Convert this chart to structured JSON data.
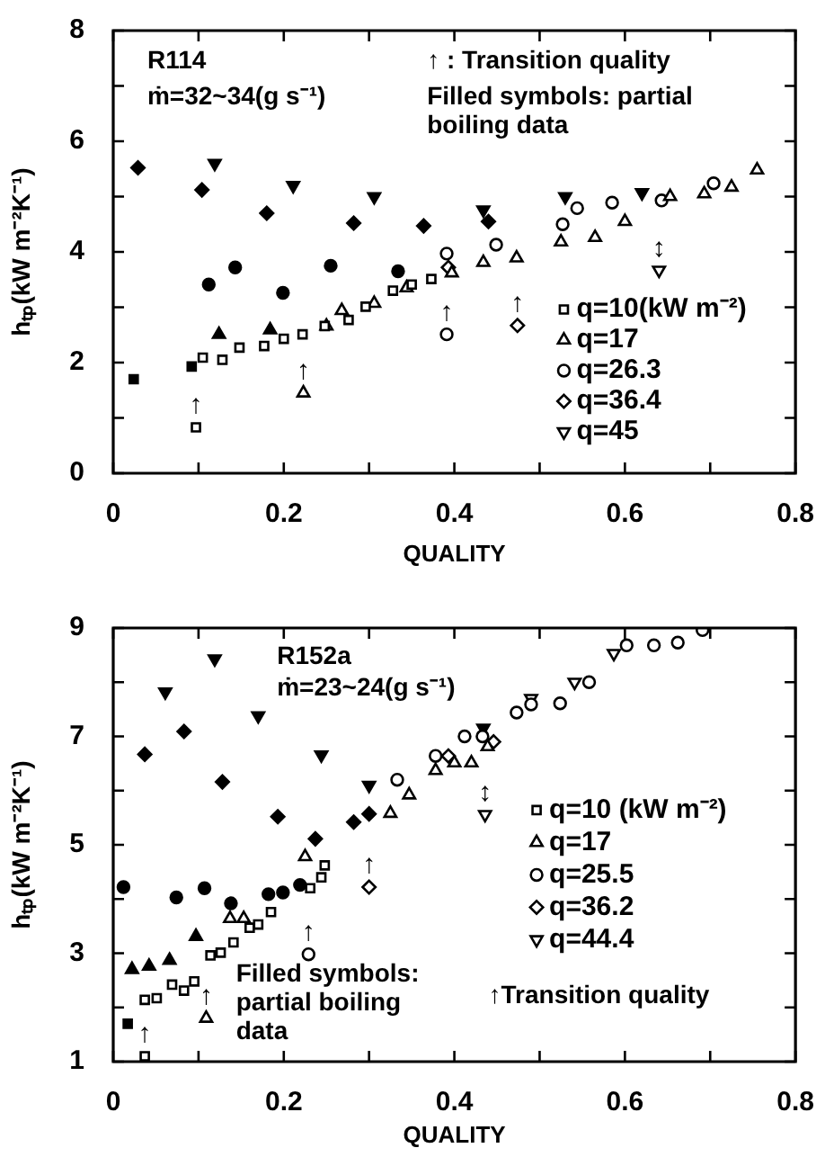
{
  "chart_data": [
    {
      "type": "scatter",
      "xlabel": "QUALITY",
      "ylabel": "hₜₚ(kW m⁻²K⁻¹)",
      "xlim": [
        0,
        0.8
      ],
      "ylim": [
        0,
        8
      ],
      "xticks": [
        0,
        {
          "value": 0.1,
          "label": null
        },
        0.2,
        {
          "value": 0.3,
          "label": null
        },
        0.4,
        {
          "value": 0.5,
          "label": null
        },
        0.6,
        {
          "value": 0.7,
          "label": null
        },
        0.8
      ],
      "yticks": [
        0,
        {
          "value": 1,
          "label": null
        },
        2,
        {
          "value": 3,
          "label": null
        },
        4,
        {
          "value": 5,
          "label": null
        },
        6,
        {
          "value": 7,
          "label": null
        },
        8
      ],
      "grid": false,
      "legend": "bottom right",
      "annotations": [
        "R114",
        "ṁ=32~34(g s⁻¹)",
        "↑ : Transition quality",
        "Filled symbols: partial boiling data",
        {
          "text": "↑",
          "x": 0.097,
          "y": 0.83
        },
        {
          "text": "↑",
          "x": 0.223,
          "y": 1.45
        },
        {
          "text": "↑",
          "x": 0.391,
          "y": 2.51
        },
        {
          "text": "↑",
          "x": 0.474,
          "y": 2.67
        },
        {
          "text": "↕",
          "x": 0.64,
          "y": 3.67
        }
      ],
      "series": [
        {
          "name": "q=10(kW m⁻²)",
          "color": "#000000",
          "marker": "square-open",
          "x": [
            0.097,
            0.105,
            0.128,
            0.148,
            0.177,
            0.2,
            0.222,
            0.248,
            0.276,
            0.296,
            0.328,
            0.35,
            0.373
          ],
          "values": [
            0.83,
            2.09,
            2.05,
            2.27,
            2.3,
            2.43,
            2.51,
            2.66,
            2.77,
            3.01,
            3.3,
            3.41,
            3.51
          ]
        },
        {
          "name": "q=17",
          "color": "#000000",
          "marker": "triangle-open",
          "x": [
            0.223,
            0.25,
            0.268,
            0.306,
            0.344,
            0.397,
            0.434,
            0.473,
            0.525,
            0.565,
            0.6,
            0.653,
            0.693,
            0.725,
            0.755
          ],
          "values": [
            1.45,
            2.66,
            2.94,
            3.07,
            3.35,
            3.62,
            3.81,
            3.89,
            4.18,
            4.26,
            4.55,
            5.0,
            5.05,
            5.17,
            5.48
          ]
        },
        {
          "name": "q=26.3",
          "color": "#000000",
          "marker": "circle-open",
          "x": [
            0.391,
            0.391,
            0.449,
            0.527,
            0.544,
            0.585,
            0.643,
            0.704
          ],
          "values": [
            2.51,
            3.97,
            4.13,
            4.5,
            4.79,
            4.89,
            4.93,
            5.24
          ]
        },
        {
          "name": "q=36.4",
          "color": "#000000",
          "marker": "diamond-open",
          "x": [
            0.474,
            0.393
          ],
          "values": [
            2.67,
            3.72
          ]
        },
        {
          "name": "q=45",
          "color": "#000000",
          "marker": "triangle-down-open",
          "x": [
            0.64
          ],
          "values": [
            3.67
          ]
        },
        {
          "color": "#000000",
          "marker": "square",
          "x": [
            0.024,
            0.092
          ],
          "values": [
            1.7,
            1.93
          ]
        },
        {
          "color": "#000000",
          "marker": "triangle",
          "x": [
            0.124,
            0.184
          ],
          "values": [
            2.51,
            2.59
          ]
        },
        {
          "color": "#000000",
          "marker": "circle",
          "x": [
            0.112,
            0.143,
            0.199,
            0.255,
            0.334
          ],
          "values": [
            3.41,
            3.72,
            3.26,
            3.75,
            3.65
          ]
        },
        {
          "color": "#000000",
          "marker": "diamond",
          "x": [
            0.029,
            0.104,
            0.18,
            0.282,
            0.364,
            0.44
          ],
          "values": [
            5.52,
            5.12,
            4.7,
            4.52,
            4.47,
            4.55
          ]
        },
        {
          "color": "#000000",
          "marker": "triangle-down",
          "x": [
            0.119,
            0.211,
            0.306,
            0.434,
            0.53,
            0.62
          ],
          "values": [
            5.6,
            5.2,
            5.0,
            4.76,
            5.0,
            5.07
          ]
        }
      ]
    },
    {
      "type": "scatter",
      "xlabel": "QUALITY",
      "ylabel": "hₜₚ(kW m⁻²K⁻¹)",
      "xlim": [
        0,
        0.8
      ],
      "ylim": [
        1,
        9
      ],
      "xticks": [
        0,
        {
          "value": 0.1,
          "label": null
        },
        0.2,
        {
          "value": 0.3,
          "label": null
        },
        0.4,
        {
          "value": 0.5,
          "label": null
        },
        0.6,
        {
          "value": 0.7,
          "label": null
        },
        0.8
      ],
      "yticks": [
        1,
        {
          "value": 2,
          "label": null
        },
        3,
        {
          "value": 4,
          "label": null
        },
        5,
        {
          "value": 6,
          "label": null
        },
        7,
        {
          "value": 8,
          "label": null
        },
        9
      ],
      "grid": false,
      "legend": "right",
      "annotations": [
        "R152a",
        "ṁ=23~24(g s⁻¹)",
        "Filled symbols: partial boiling data",
        "↑Transition quality",
        {
          "text": "↑",
          "x": 0.037,
          "y": 1.1
        },
        {
          "text": "↑",
          "x": 0.109,
          "y": 1.8
        },
        {
          "text": "↑",
          "x": 0.229,
          "y": 2.98
        },
        {
          "text": "↑",
          "x": 0.3,
          "y": 4.22
        },
        {
          "text": "↕",
          "x": 0.436,
          "y": 5.56
        }
      ],
      "series": [
        {
          "name": "q=10 (kW m⁻²)",
          "color": "#000000",
          "marker": "square-open",
          "x": [
            0.037,
            0.037,
            0.051,
            0.069,
            0.083,
            0.095,
            0.114,
            0.126,
            0.141,
            0.16,
            0.17,
            0.185,
            0.231,
            0.244,
            0.248
          ],
          "values": [
            1.1,
            2.14,
            2.17,
            2.42,
            2.31,
            2.48,
            2.96,
            3.01,
            3.2,
            3.47,
            3.53,
            3.76,
            4.2,
            4.4,
            4.62
          ]
        },
        {
          "name": "q=17",
          "color": "#000000",
          "marker": "triangle-open",
          "x": [
            0.109,
            0.137,
            0.153,
            0.225,
            0.325,
            0.347,
            0.378,
            0.4,
            0.42,
            0.439
          ],
          "values": [
            1.8,
            3.64,
            3.64,
            4.78,
            5.58,
            5.92,
            6.37,
            6.51,
            6.51,
            6.81
          ]
        },
        {
          "name": "q=25.5",
          "color": "#000000",
          "marker": "circle-open",
          "x": [
            0.229,
            0.333,
            0.378,
            0.412,
            0.433,
            0.473,
            0.49,
            0.524,
            0.558,
            0.602,
            0.634,
            0.662,
            0.691
          ],
          "values": [
            2.98,
            6.2,
            6.64,
            7.0,
            7.0,
            7.44,
            7.59,
            7.61,
            8.0,
            8.68,
            8.68,
            8.73,
            8.96
          ]
        },
        {
          "name": "q=36.2",
          "color": "#000000",
          "marker": "diamond-open",
          "x": [
            0.3,
            0.393,
            0.446
          ],
          "values": [
            4.22,
            6.64,
            6.9
          ]
        },
        {
          "name": "q=44.4",
          "color": "#000000",
          "marker": "triangle-down-open",
          "x": [
            0.436,
            0.49,
            0.541,
            0.587
          ],
          "values": [
            5.56,
            7.7,
            8.0,
            8.53
          ]
        },
        {
          "color": "#000000",
          "marker": "square",
          "x": [
            0.017
          ],
          "values": [
            1.7
          ]
        },
        {
          "color": "#000000",
          "marker": "triangle",
          "x": [
            0.022,
            0.042,
            0.066,
            0.097
          ],
          "values": [
            2.7,
            2.76,
            2.87,
            3.31
          ]
        },
        {
          "color": "#000000",
          "marker": "circle",
          "x": [
            0.012,
            0.074,
            0.107,
            0.138,
            0.182,
            0.199,
            0.219
          ],
          "values": [
            4.22,
            4.03,
            4.2,
            3.92,
            4.09,
            4.12,
            4.26
          ]
        },
        {
          "color": "#000000",
          "marker": "diamond",
          "x": [
            0.037,
            0.083,
            0.128,
            0.193,
            0.237,
            0.282,
            0.3
          ],
          "values": [
            6.67,
            7.09,
            6.16,
            5.52,
            5.11,
            5.42,
            5.57
          ]
        },
        {
          "color": "#000000",
          "marker": "triangle-down",
          "x": [
            0.061,
            0.119,
            0.17,
            0.244,
            0.3,
            0.434
          ],
          "values": [
            7.82,
            8.43,
            7.38,
            6.66,
            6.1,
            7.15
          ]
        }
      ]
    }
  ]
}
